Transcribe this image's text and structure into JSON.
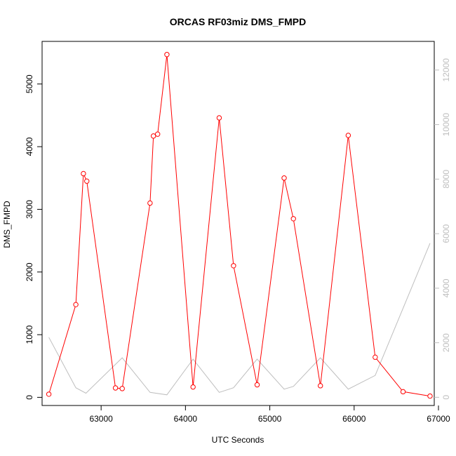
{
  "chart_data": {
    "type": "line",
    "title": "ORCAS RF03miz DMS_FMPD",
    "xlabel": "UTC Seconds",
    "ylabel": "DMS_FMPD",
    "xlim": [
      62300,
      66950
    ],
    "ylim": [
      -130,
      5680
    ],
    "y2lim": [
      -300,
      13050
    ],
    "x_ticks": [
      63000,
      64000,
      65000,
      66000,
      67000
    ],
    "y_ticks": [
      0,
      1000,
      2000,
      3000,
      4000,
      5000
    ],
    "y2_ticks": [
      0,
      2000,
      4000,
      6000,
      8000,
      10000,
      12000
    ],
    "grid": false,
    "colors": {
      "primary_series": "#ff0000",
      "secondary_series": "#bebebe",
      "right_axis": "#bebebe"
    },
    "series": [
      {
        "axis": "left",
        "style": "line-with-open-circles",
        "x": [
          62380,
          62700,
          62790,
          62830,
          63170,
          63250,
          63580,
          63620,
          63670,
          63780,
          64090,
          64400,
          64570,
          64850,
          65170,
          65280,
          65600,
          65930,
          66250,
          66580,
          66900
        ],
        "y": [
          50,
          1480,
          3570,
          3450,
          150,
          140,
          3100,
          4170,
          4200,
          5470,
          165,
          4460,
          2100,
          200,
          3500,
          2850,
          185,
          4180,
          640,
          90,
          20
        ]
      },
      {
        "axis": "right",
        "style": "line",
        "x": [
          62380,
          62700,
          62820,
          63250,
          63580,
          63780,
          64090,
          64400,
          64570,
          64850,
          65170,
          65280,
          65600,
          65930,
          66250,
          66900
        ],
        "y": [
          2200,
          350,
          150,
          1450,
          180,
          90,
          1400,
          180,
          350,
          1400,
          300,
          400,
          1450,
          300,
          800,
          5650
        ]
      }
    ]
  }
}
